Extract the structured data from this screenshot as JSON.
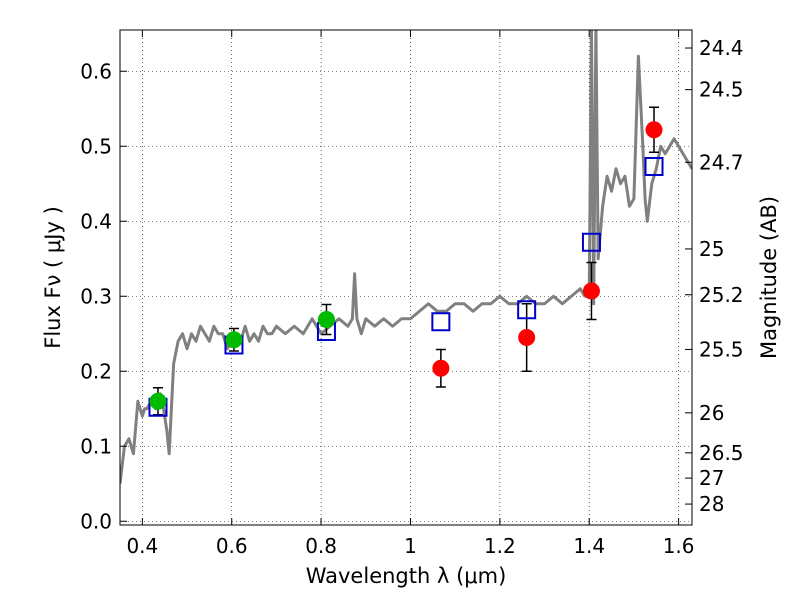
{
  "chart_data": {
    "type": "scatter",
    "xlabel": "Wavelength  λ (μm)",
    "ylabel": "Flux  Fν  ( μJy )",
    "ylabel_right": "Magnitude (AB)",
    "xlim": [
      0.35,
      1.63
    ],
    "ylim": [
      -0.005,
      0.655
    ],
    "grid": true,
    "x_ticks": [
      0.4,
      0.6,
      0.8,
      1.0,
      1.2,
      1.4,
      1.6
    ],
    "x_tick_labels": [
      "0.4",
      "0.6",
      "0.8",
      "1",
      "1.2",
      "1.4",
      "1.6"
    ],
    "y_ticks": [
      0.0,
      0.1,
      0.2,
      0.3,
      0.4,
      0.5,
      0.6
    ],
    "y_tick_labels": [
      "0.0",
      "0.1",
      "0.2",
      "0.3",
      "0.4",
      "0.5",
      "0.6"
    ],
    "right_axis": {
      "label": "Magnitude (AB)",
      "ticks": [
        {
          "mag": 24.4,
          "label": "24.4"
        },
        {
          "mag": 24.5,
          "label": "24.5"
        },
        {
          "mag": 24.7,
          "label": "24.7"
        },
        {
          "mag": 25.0,
          "label": "25"
        },
        {
          "mag": 25.2,
          "label": "25.2"
        },
        {
          "mag": 25.5,
          "label": "25.5"
        },
        {
          "mag": 26.0,
          "label": "26"
        },
        {
          "mag": 26.5,
          "label": "26.5"
        },
        {
          "mag": 27.0,
          "label": "27"
        },
        {
          "mag": 28.0,
          "label": "28"
        }
      ]
    },
    "series": [
      {
        "kind": "spectrum-line",
        "color": "#808080",
        "x": [
          0.35,
          0.36,
          0.37,
          0.38,
          0.39,
          0.4,
          0.405,
          0.41,
          0.42,
          0.43,
          0.44,
          0.445,
          0.45,
          0.455,
          0.46,
          0.465,
          0.47,
          0.48,
          0.49,
          0.5,
          0.51,
          0.52,
          0.53,
          0.54,
          0.55,
          0.56,
          0.57,
          0.58,
          0.59,
          0.6,
          0.61,
          0.62,
          0.63,
          0.64,
          0.65,
          0.66,
          0.67,
          0.68,
          0.69,
          0.7,
          0.72,
          0.74,
          0.76,
          0.78,
          0.8,
          0.82,
          0.84,
          0.86,
          0.87,
          0.875,
          0.88,
          0.89,
          0.9,
          0.92,
          0.94,
          0.96,
          0.98,
          1.0,
          1.02,
          1.04,
          1.06,
          1.08,
          1.1,
          1.12,
          1.14,
          1.16,
          1.18,
          1.2,
          1.22,
          1.24,
          1.26,
          1.28,
          1.3,
          1.32,
          1.34,
          1.36,
          1.38,
          1.39,
          1.4,
          1.405,
          1.41,
          1.415,
          1.42,
          1.43,
          1.44,
          1.45,
          1.46,
          1.47,
          1.48,
          1.49,
          1.5,
          1.51,
          1.52,
          1.525,
          1.53,
          1.54,
          1.55,
          1.56,
          1.57,
          1.58,
          1.59,
          1.6,
          1.61,
          1.62,
          1.63
        ],
        "y": [
          0.05,
          0.1,
          0.11,
          0.09,
          0.16,
          0.14,
          0.15,
          0.15,
          0.16,
          0.15,
          0.17,
          0.16,
          0.14,
          0.12,
          0.09,
          0.15,
          0.21,
          0.24,
          0.25,
          0.23,
          0.25,
          0.24,
          0.26,
          0.25,
          0.24,
          0.26,
          0.25,
          0.25,
          0.23,
          0.24,
          0.25,
          0.24,
          0.26,
          0.24,
          0.25,
          0.24,
          0.26,
          0.25,
          0.25,
          0.26,
          0.25,
          0.26,
          0.25,
          0.27,
          0.25,
          0.26,
          0.27,
          0.26,
          0.27,
          0.33,
          0.27,
          0.25,
          0.27,
          0.26,
          0.27,
          0.26,
          0.27,
          0.27,
          0.28,
          0.29,
          0.28,
          0.28,
          0.29,
          0.29,
          0.28,
          0.29,
          0.29,
          0.3,
          0.29,
          0.29,
          0.3,
          0.29,
          0.29,
          0.3,
          0.29,
          0.3,
          0.31,
          0.3,
          0.3,
          0.66,
          0.29,
          0.66,
          0.35,
          0.42,
          0.46,
          0.44,
          0.47,
          0.45,
          0.46,
          0.42,
          0.43,
          0.62,
          0.5,
          0.43,
          0.4,
          0.45,
          0.47,
          0.5,
          0.49,
          0.5,
          0.51,
          0.5,
          0.49,
          0.48,
          0.47
        ]
      },
      {
        "kind": "model-points",
        "marker": "open-square",
        "color": "#0000cc",
        "x": [
          0.435,
          0.605,
          0.812,
          1.068,
          1.26,
          1.405,
          1.545
        ],
        "y": [
          0.152,
          0.235,
          0.253,
          0.266,
          0.282,
          0.372,
          0.473
        ]
      },
      {
        "kind": "detections",
        "marker": "filled-circle",
        "color": "#00bb00",
        "x": [
          0.435,
          0.605,
          0.812
        ],
        "y": [
          0.16,
          0.242,
          0.269
        ],
        "err": [
          0.018,
          0.015,
          0.02
        ]
      },
      {
        "kind": "detections",
        "marker": "filled-circle",
        "color": "#ff0000",
        "x": [
          1.068,
          1.26,
          1.405,
          1.545
        ],
        "y": [
          0.204,
          0.245,
          0.307,
          0.522
        ],
        "err": [
          0.025,
          0.045,
          0.038,
          0.03
        ]
      }
    ]
  }
}
